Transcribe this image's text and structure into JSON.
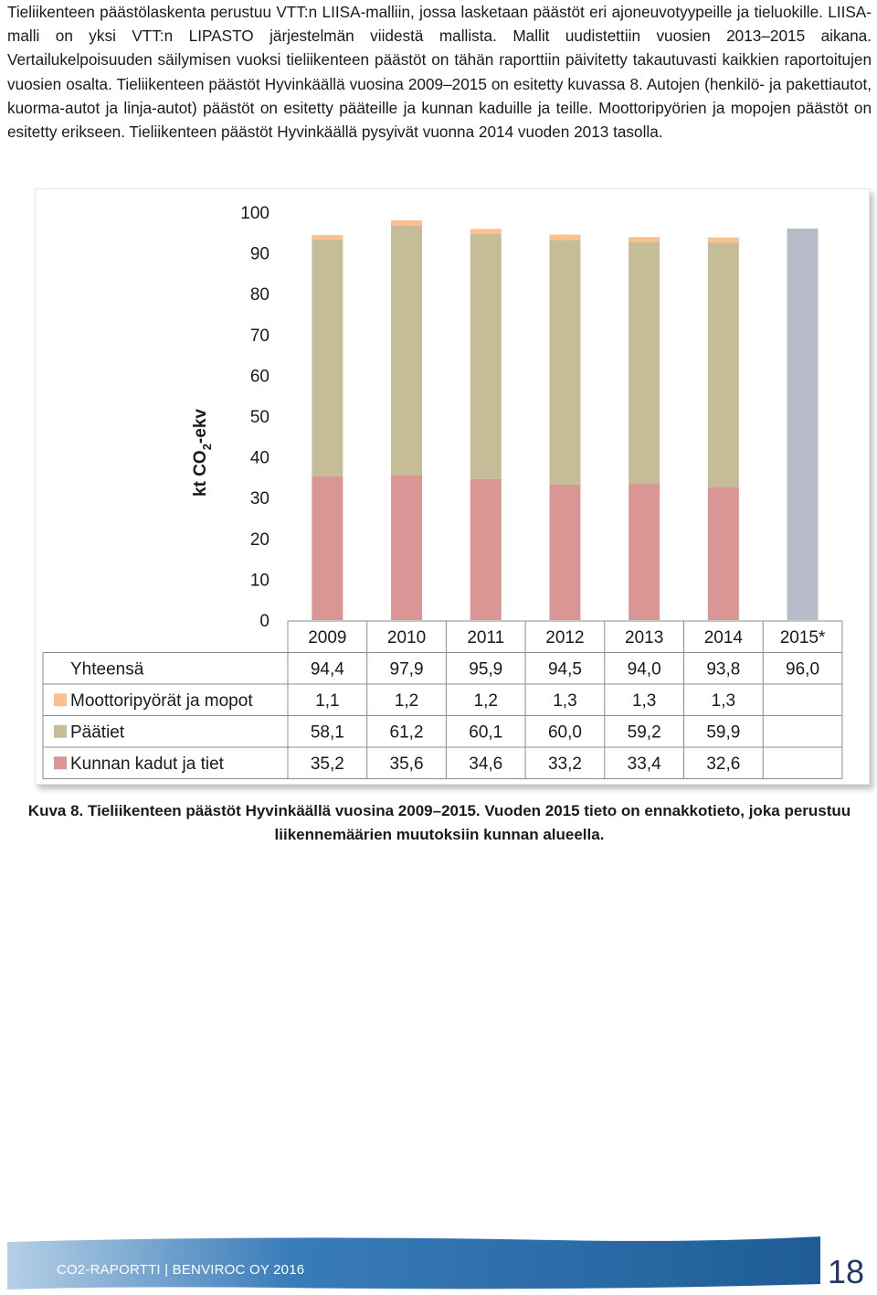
{
  "body_text": "Tieliikenteen päästölaskenta perustuu VTT:n LIISA-malliin, jossa lasketaan päästöt eri ajoneuvotyypeille ja tieluokille. LIISA-malli on yksi VTT:n LIPASTO järjestelmän viidestä mallista. Mallit uudistettiin vuosien 2013–2015 aikana. Vertailukelpoisuuden säilymisen vuoksi tieliikenteen päästöt on tähän raporttiin päivitetty takautuvasti kaikkien raportoitujen vuosien osalta. Tieliikenteen päästöt Hyvinkäällä vuosina 2009–2015 on esitetty kuvassa 8. Autojen (henkilö- ja pakettiautot, kuorma-autot ja linja-autot) päästöt on esitetty pääteille ja kunnan kaduille ja teille. Moottoripyörien ja mopojen päästöt on esitetty erikseen. Tieliikenteen päästöt Hyvinkäällä pysyivät vuonna 2014 vuoden 2013 tasolla.",
  "chart_data": {
    "type": "bar",
    "stacked": true,
    "ylabel": "kt CO2-ekv",
    "ylabel_main": "kt CO",
    "ylabel_sub": "2",
    "ylabel_suffix": "-ekv",
    "ylim": [
      0,
      100
    ],
    "yticks": [
      "0",
      "10",
      "20",
      "30",
      "40",
      "50",
      "60",
      "70",
      "80",
      "90",
      "100"
    ],
    "categories": [
      "2009",
      "2010",
      "2011",
      "2012",
      "2013",
      "2014",
      "2015*"
    ],
    "series": [
      {
        "name": "Kunnan kadut ja tiet",
        "color": "#d99694",
        "values": [
          35.2,
          35.6,
          34.6,
          33.2,
          33.4,
          32.6,
          null
        ],
        "labels": [
          "35,2",
          "35,6",
          "34,6",
          "33,2",
          "33,4",
          "32,6",
          ""
        ]
      },
      {
        "name": "Päätiet",
        "color": "#c4bd97",
        "values": [
          58.1,
          61.2,
          60.1,
          60.0,
          59.2,
          59.9,
          null
        ],
        "labels": [
          "58,1",
          "61,2",
          "60,1",
          "60,0",
          "59,2",
          "59,9",
          ""
        ]
      },
      {
        "name": "Moottoripyörät ja mopot",
        "color": "#fac090",
        "values": [
          1.1,
          1.2,
          1.2,
          1.3,
          1.3,
          1.3,
          null
        ],
        "labels": [
          "1,1",
          "1,2",
          "1,2",
          "1,3",
          "1,3",
          "1,3",
          ""
        ]
      }
    ],
    "total": {
      "name": "Yhteensä",
      "values": [
        94.4,
        97.9,
        95.9,
        94.5,
        94.0,
        93.8,
        96.0
      ],
      "labels": [
        "94,4",
        "97,9",
        "95,9",
        "94,5",
        "94,0",
        "93,8",
        "96,0"
      ]
    },
    "estimate_bar": {
      "category": "2015*",
      "value": 96.0,
      "color": "#b7bcc8"
    },
    "table_row_order": [
      "Yhteensä",
      "Moottoripyörät ja mopot",
      "Päätiet",
      "Kunnan kadut ja tiet"
    ],
    "grid": false,
    "legend": "data-table"
  },
  "caption": "Kuva 8. Tieliikenteen päästöt Hyvinkäällä vuosina 2009–2015. Vuoden 2015 tieto on ennakkotieto, joka perustuu liikennemäärien muutoksiin kunnan alueella.",
  "footer": {
    "text": "CO2-RAPORTTI | BENVIROC OY 2016",
    "page_number": "18",
    "bar_color": "#2e75b6"
  }
}
